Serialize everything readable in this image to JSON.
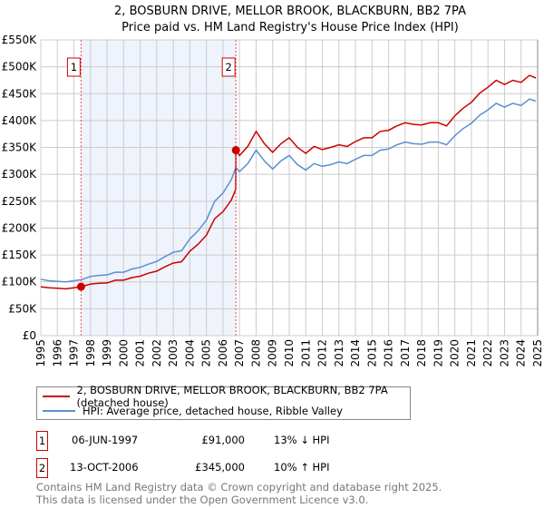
{
  "title": "2, BOSBURN DRIVE, MELLOR BROOK, BLACKBURN, BB2 7PA",
  "subtitle": "Price paid vs. HM Land Registry's House Price Index (HPI)",
  "colors": {
    "property": "#cc0000",
    "hpi": "#5b8fd0",
    "shade": "#eef3fc",
    "grid": "#cccccc"
  },
  "chart_data": {
    "type": "line",
    "title": "2, BOSBURN DRIVE, MELLOR BROOK, BLACKBURN, BB2 7PA",
    "subtitle": "Price paid vs. HM Land Registry's House Price Index (HPI)",
    "xlabel": "",
    "ylabel": "",
    "xlim": [
      1995,
      2025
    ],
    "ylim": [
      0,
      550000
    ],
    "grid": true,
    "legend_position": "below",
    "x_ticks": [
      "1995",
      "1996",
      "1997",
      "1998",
      "1999",
      "2000",
      "2001",
      "2002",
      "2003",
      "2004",
      "2005",
      "2006",
      "2007",
      "2008",
      "2009",
      "2010",
      "2011",
      "2012",
      "2013",
      "2014",
      "2015",
      "2016",
      "2017",
      "2018",
      "2019",
      "2020",
      "2021",
      "2022",
      "2023",
      "2024",
      "2025"
    ],
    "y_ticks": [
      {
        "v": 0,
        "label": "£0"
      },
      {
        "v": 50000,
        "label": "£50K"
      },
      {
        "v": 100000,
        "label": "£100K"
      },
      {
        "v": 150000,
        "label": "£150K"
      },
      {
        "v": 200000,
        "label": "£200K"
      },
      {
        "v": 250000,
        "label": "£250K"
      },
      {
        "v": 300000,
        "label": "£300K"
      },
      {
        "v": 350000,
        "label": "£350K"
      },
      {
        "v": 400000,
        "label": "£400K"
      },
      {
        "v": 450000,
        "label": "£450K"
      },
      {
        "v": 500000,
        "label": "£500K"
      },
      {
        "v": 550000,
        "label": "£550K"
      }
    ],
    "series": [
      {
        "name": "2, BOSBURN DRIVE, MELLOR BROOK, BLACKBURN, BB2 7PA (detached house)",
        "color": "#cc0000",
        "x": [
          1995,
          1995.5,
          1996,
          1996.5,
          1997,
          1997.43,
          1998,
          1998.5,
          1999,
          1999.5,
          2000,
          2000.5,
          2001,
          2001.5,
          2002,
          2002.5,
          2003,
          2003.5,
          2004,
          2004.5,
          2005,
          2005.5,
          2006,
          2006.5,
          2006.77,
          2006.78,
          2007,
          2007.5,
          2008,
          2008.5,
          2009,
          2009.5,
          2010,
          2010.5,
          2011,
          2011.5,
          2012,
          2012.5,
          2013,
          2013.5,
          2014,
          2014.5,
          2015,
          2015.5,
          2016,
          2016.5,
          2017,
          2017.5,
          2018,
          2018.5,
          2019,
          2019.5,
          2020,
          2020.5,
          2021,
          2021.5,
          2022,
          2022.5,
          2023,
          2023.5,
          2024,
          2024.5,
          2024.9
        ],
        "y": [
          91000,
          89000,
          88000,
          87000,
          89000,
          91000,
          96000,
          97500,
          98000,
          103000,
          103000,
          108000,
          110500,
          116000,
          120000,
          128000,
          135000,
          137500,
          157000,
          170000,
          187000,
          217500,
          230500,
          252000,
          272000,
          345000,
          335000,
          352000,
          380000,
          357000,
          341000,
          357000,
          368000,
          350000,
          339000,
          352000,
          346000,
          350000,
          355000,
          352000,
          361000,
          368000,
          368000,
          380000,
          382000,
          390000,
          396000,
          393000,
          392000,
          396000,
          396000,
          390000,
          409000,
          423000,
          434000,
          451000,
          462000,
          475000,
          467000,
          475000,
          471000,
          484000,
          479000
        ]
      },
      {
        "name": "HPI: Average price, detached house, Ribble Valley",
        "color": "#5b8fd0",
        "x": [
          1995,
          1995.5,
          1996,
          1996.5,
          1997,
          1997.43,
          1998,
          1998.5,
          1999,
          1999.5,
          2000,
          2000.5,
          2001,
          2001.5,
          2002,
          2002.5,
          2003,
          2003.5,
          2004,
          2004.5,
          2005,
          2005.5,
          2006,
          2006.5,
          2006.78,
          2007,
          2007.5,
          2008,
          2008.5,
          2009,
          2009.5,
          2010,
          2010.5,
          2011,
          2011.5,
          2012,
          2012.5,
          2013,
          2013.5,
          2014,
          2014.5,
          2015,
          2015.5,
          2016,
          2016.5,
          2017,
          2017.5,
          2018,
          2018.5,
          2019,
          2019.5,
          2020,
          2020.5,
          2021,
          2021.5,
          2022,
          2022.5,
          2023,
          2023.5,
          2024,
          2024.5,
          2024.9
        ],
        "y": [
          105000,
          102000,
          101000,
          100000,
          102000,
          104000,
          110000,
          112000,
          113000,
          118000,
          118000,
          124000,
          127000,
          133000,
          138000,
          147000,
          155000,
          158000,
          180000,
          195000,
          215000,
          250000,
          265000,
          290000,
          313000,
          305000,
          320000,
          345000,
          325000,
          310000,
          325000,
          335000,
          318000,
          308000,
          320000,
          315000,
          318000,
          323000,
          320000,
          328000,
          335000,
          335000,
          345000,
          347000,
          355000,
          360000,
          357000,
          356000,
          360000,
          360000,
          355000,
          372000,
          385000,
          395000,
          410000,
          420000,
          432000,
          425000,
          432000,
          428000,
          440000,
          436000
        ]
      }
    ],
    "annotations": [
      {
        "label": "1",
        "x": 1997.43,
        "y": 91000
      },
      {
        "label": "2",
        "x": 2006.78,
        "y": 345000
      }
    ],
    "shaded_range": [
      1997.43,
      2006.78
    ]
  },
  "legend": {
    "property": "2, BOSBURN DRIVE, MELLOR BROOK, BLACKBURN, BB2 7PA (detached house)",
    "hpi": "HPI: Average price, detached house, Ribble Valley"
  },
  "sales": [
    {
      "num": "1",
      "date": "06-JUN-1997",
      "price": "£91,000",
      "hpi": "13% ↓ HPI"
    },
    {
      "num": "2",
      "date": "13-OCT-2006",
      "price": "£345,000",
      "hpi": "10% ↑ HPI"
    }
  ],
  "footer": {
    "line1": "Contains HM Land Registry data © Crown copyright and database right 2025.",
    "line2": "This data is licensed under the Open Government Licence v3.0."
  }
}
